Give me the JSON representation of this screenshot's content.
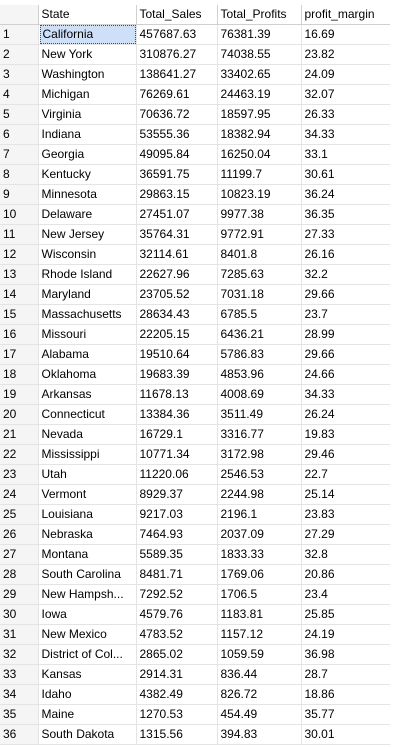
{
  "columns": [
    "State",
    "Total_Sales",
    "Total_Profits",
    "profit_margin"
  ],
  "selected_row": 1,
  "rows": [
    {
      "n": "1",
      "state": "California",
      "sales": "457687.63",
      "profits": "76381.39",
      "margin": "16.69"
    },
    {
      "n": "2",
      "state": "New York",
      "sales": "310876.27",
      "profits": "74038.55",
      "margin": "23.82"
    },
    {
      "n": "3",
      "state": "Washington",
      "sales": "138641.27",
      "profits": "33402.65",
      "margin": "24.09"
    },
    {
      "n": "4",
      "state": "Michigan",
      "sales": "76269.61",
      "profits": "24463.19",
      "margin": "32.07"
    },
    {
      "n": "5",
      "state": "Virginia",
      "sales": "70636.72",
      "profits": "18597.95",
      "margin": "26.33"
    },
    {
      "n": "6",
      "state": "Indiana",
      "sales": "53555.36",
      "profits": "18382.94",
      "margin": "34.33"
    },
    {
      "n": "7",
      "state": "Georgia",
      "sales": "49095.84",
      "profits": "16250.04",
      "margin": "33.1"
    },
    {
      "n": "8",
      "state": "Kentucky",
      "sales": "36591.75",
      "profits": "11199.7",
      "margin": "30.61"
    },
    {
      "n": "9",
      "state": "Minnesota",
      "sales": "29863.15",
      "profits": "10823.19",
      "margin": "36.24"
    },
    {
      "n": "10",
      "state": "Delaware",
      "sales": "27451.07",
      "profits": "9977.38",
      "margin": "36.35"
    },
    {
      "n": "11",
      "state": "New Jersey",
      "sales": "35764.31",
      "profits": "9772.91",
      "margin": "27.33"
    },
    {
      "n": "12",
      "state": "Wisconsin",
      "sales": "32114.61",
      "profits": "8401.8",
      "margin": "26.16"
    },
    {
      "n": "13",
      "state": "Rhode Island",
      "sales": "22627.96",
      "profits": "7285.63",
      "margin": "32.2"
    },
    {
      "n": "14",
      "state": "Maryland",
      "sales": "23705.52",
      "profits": "7031.18",
      "margin": "29.66"
    },
    {
      "n": "15",
      "state": "Massachusetts",
      "sales": "28634.43",
      "profits": "6785.5",
      "margin": "23.7"
    },
    {
      "n": "16",
      "state": "Missouri",
      "sales": "22205.15",
      "profits": "6436.21",
      "margin": "28.99"
    },
    {
      "n": "17",
      "state": "Alabama",
      "sales": "19510.64",
      "profits": "5786.83",
      "margin": "29.66"
    },
    {
      "n": "18",
      "state": "Oklahoma",
      "sales": "19683.39",
      "profits": "4853.96",
      "margin": "24.66"
    },
    {
      "n": "19",
      "state": "Arkansas",
      "sales": "11678.13",
      "profits": "4008.69",
      "margin": "34.33"
    },
    {
      "n": "20",
      "state": "Connecticut",
      "sales": "13384.36",
      "profits": "3511.49",
      "margin": "26.24"
    },
    {
      "n": "21",
      "state": "Nevada",
      "sales": "16729.1",
      "profits": "3316.77",
      "margin": "19.83"
    },
    {
      "n": "22",
      "state": "Mississippi",
      "sales": "10771.34",
      "profits": "3172.98",
      "margin": "29.46"
    },
    {
      "n": "23",
      "state": "Utah",
      "sales": "11220.06",
      "profits": "2546.53",
      "margin": "22.7"
    },
    {
      "n": "24",
      "state": "Vermont",
      "sales": "8929.37",
      "profits": "2244.98",
      "margin": "25.14"
    },
    {
      "n": "25",
      "state": "Louisiana",
      "sales": "9217.03",
      "profits": "2196.1",
      "margin": "23.83"
    },
    {
      "n": "26",
      "state": "Nebraska",
      "sales": "7464.93",
      "profits": "2037.09",
      "margin": "27.29"
    },
    {
      "n": "27",
      "state": "Montana",
      "sales": "5589.35",
      "profits": "1833.33",
      "margin": "32.8"
    },
    {
      "n": "28",
      "state": "South Carolina",
      "sales": "8481.71",
      "profits": "1769.06",
      "margin": "20.86"
    },
    {
      "n": "29",
      "state": "New Hampsh...",
      "sales": "7292.52",
      "profits": "1706.5",
      "margin": "23.4"
    },
    {
      "n": "30",
      "state": "Iowa",
      "sales": "4579.76",
      "profits": "1183.81",
      "margin": "25.85"
    },
    {
      "n": "31",
      "state": "New Mexico",
      "sales": "4783.52",
      "profits": "1157.12",
      "margin": "24.19"
    },
    {
      "n": "32",
      "state": "District of Col...",
      "sales": "2865.02",
      "profits": "1059.59",
      "margin": "36.98"
    },
    {
      "n": "33",
      "state": "Kansas",
      "sales": "2914.31",
      "profits": "836.44",
      "margin": "28.7"
    },
    {
      "n": "34",
      "state": "Idaho",
      "sales": "4382.49",
      "profits": "826.72",
      "margin": "18.86"
    },
    {
      "n": "35",
      "state": "Maine",
      "sales": "1270.53",
      "profits": "454.49",
      "margin": "35.77"
    },
    {
      "n": "36",
      "state": "South Dakota",
      "sales": "1315.56",
      "profits": "394.83",
      "margin": "30.01"
    }
  ]
}
